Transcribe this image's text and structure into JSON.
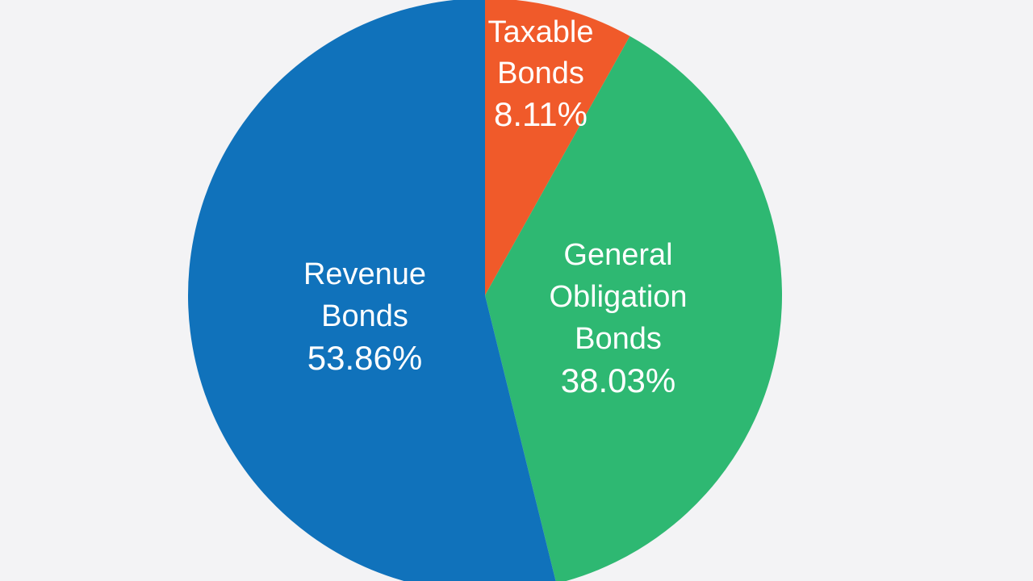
{
  "chart_data": {
    "type": "pie",
    "title": "",
    "slices": [
      {
        "label_lines": [
          "Taxable",
          "Bonds"
        ],
        "value": 8.11,
        "value_label": "8.11%",
        "color": "#f05a2a"
      },
      {
        "label_lines": [
          "General",
          "Obligation",
          "Bonds"
        ],
        "value": 38.03,
        "value_label": "38.03%",
        "color": "#2eb872"
      },
      {
        "label_lines": [
          "Revenue",
          "Bonds"
        ],
        "value": 53.86,
        "value_label": "53.86%",
        "color": "#1072bb"
      }
    ],
    "start_angle": "12 o'clock",
    "direction": "clockwise",
    "legend": "none"
  }
}
